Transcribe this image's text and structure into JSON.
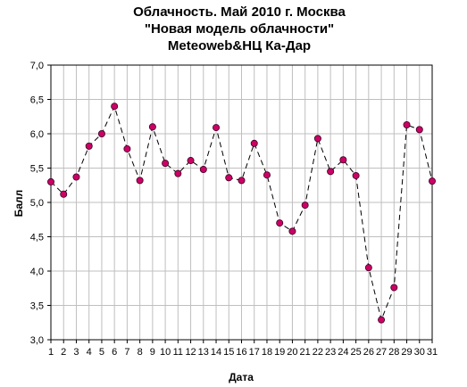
{
  "chart_data": {
    "type": "line",
    "title_lines": [
      "Облачность. Май 2010 г. Москва",
      "\"Новая модель облачности\"",
      "Meteoweb&НЦ Ка-Дар"
    ],
    "xlabel": "Дата",
    "ylabel": "Балл",
    "ylim": [
      3.0,
      7.0
    ],
    "y_ticks": [
      "3,0",
      "3,5",
      "4,0",
      "4,5",
      "5,0",
      "5,5",
      "6,0",
      "6,5",
      "7,0"
    ],
    "y_tick_values": [
      3.0,
      3.5,
      4.0,
      4.5,
      5.0,
      5.5,
      6.0,
      6.5,
      7.0
    ],
    "x": [
      1,
      2,
      3,
      4,
      5,
      6,
      7,
      8,
      9,
      10,
      11,
      12,
      13,
      14,
      15,
      16,
      17,
      18,
      19,
      20,
      21,
      22,
      23,
      24,
      25,
      26,
      27,
      28,
      29,
      30,
      31
    ],
    "x_tick_labels": [
      "1",
      "2",
      "3",
      "4",
      "5",
      "6",
      "7",
      "8",
      "9",
      "10",
      "11",
      "12",
      "13",
      "14",
      "15",
      "16",
      "17",
      "18",
      "19",
      "20",
      "21",
      "22",
      "23",
      "24",
      "25",
      "26",
      "27",
      "28",
      "29",
      "30",
      "31"
    ],
    "values": [
      5.3,
      5.12,
      5.37,
      5.82,
      6.0,
      6.4,
      5.78,
      5.32,
      6.1,
      5.57,
      5.42,
      5.61,
      5.48,
      6.09,
      5.36,
      5.32,
      5.86,
      5.4,
      4.7,
      4.58,
      4.96,
      5.93,
      5.45,
      5.62,
      5.39,
      4.05,
      3.29,
      3.76,
      6.13,
      6.06,
      5.31
    ],
    "grid": true,
    "line_style": "dashed",
    "colors": {
      "marker": "#cc0066",
      "line": "#000000",
      "grid": "#bfbfbf"
    }
  }
}
